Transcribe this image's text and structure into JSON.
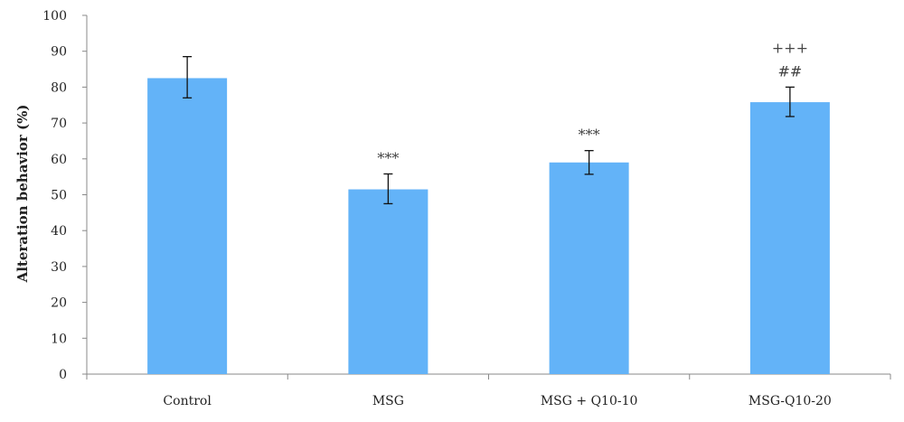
{
  "chart_data": {
    "type": "bar",
    "title": "",
    "xlabel": "",
    "ylabel": "Alteration behavior (%)",
    "ylim": [
      0,
      100
    ],
    "yticks": [
      0,
      10,
      20,
      30,
      40,
      50,
      60,
      70,
      80,
      90,
      100
    ],
    "categories": [
      "Control",
      "MSG",
      "MSG + Q10-10",
      "MSG-Q10-20"
    ],
    "values": [
      82.5,
      51.5,
      59,
      75.8
    ],
    "error_low": [
      77,
      47.5,
      55.7,
      71.8
    ],
    "error_high": [
      88.5,
      55.8,
      62.3,
      80
    ],
    "annotations": [
      [],
      [
        "***"
      ],
      [
        "***"
      ],
      [
        "##",
        "+++"
      ]
    ],
    "bar_color": "#63b3f8",
    "grid": false,
    "legend": "none"
  }
}
